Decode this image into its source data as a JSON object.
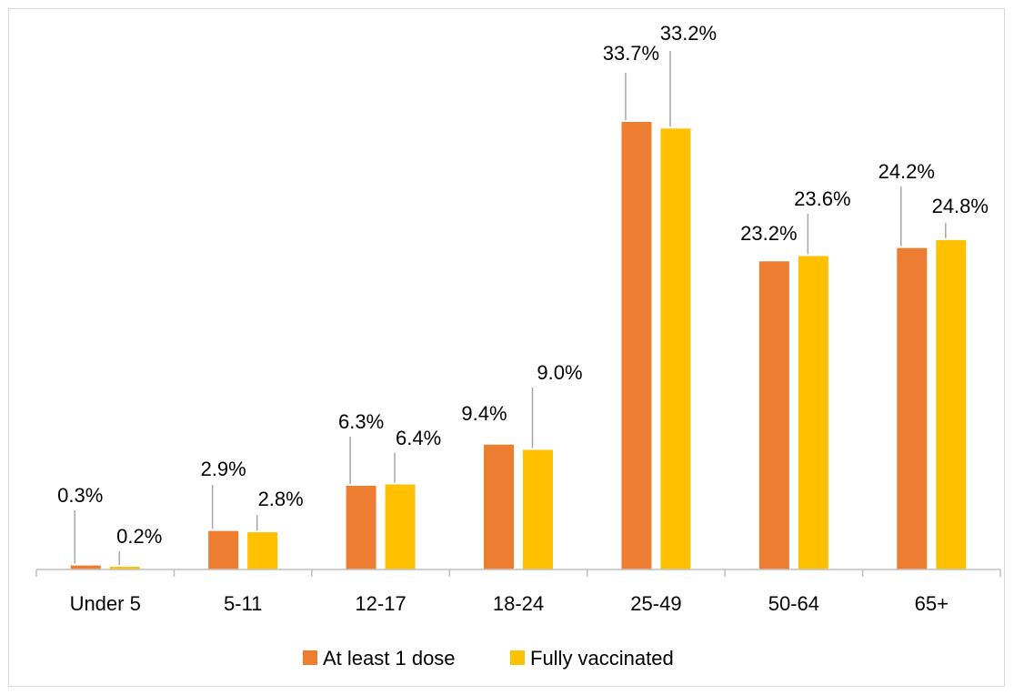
{
  "chart_data": {
    "type": "bar",
    "title": "",
    "xlabel": "",
    "ylabel": "",
    "categories": [
      "Under 5",
      "5-11",
      "12-17",
      "18-24",
      "25-49",
      "50-64",
      "65+"
    ],
    "series": [
      {
        "name": "At least 1 dose",
        "color": "#ED7D31",
        "values": [
          0.3,
          2.9,
          6.3,
          9.4,
          33.7,
          23.2,
          24.2
        ],
        "labels": [
          "0.3%",
          "2.9%",
          "6.3%",
          "9.4%",
          "33.7%",
          "23.2%",
          "24.2%"
        ]
      },
      {
        "name": "Fully vaccinated",
        "color": "#FFC000",
        "values": [
          0.2,
          2.8,
          6.4,
          9.0,
          33.2,
          23.6,
          24.8
        ],
        "labels": [
          "0.2%",
          "2.8%",
          "6.4%",
          "9.0%",
          "33.2%",
          "23.6%",
          "24.8%"
        ]
      }
    ],
    "ylim": [
      0,
      40
    ],
    "grid": false,
    "legend": "bottom",
    "axis_color": "#bfbfbf",
    "leader_color": "#a6a6a6"
  }
}
